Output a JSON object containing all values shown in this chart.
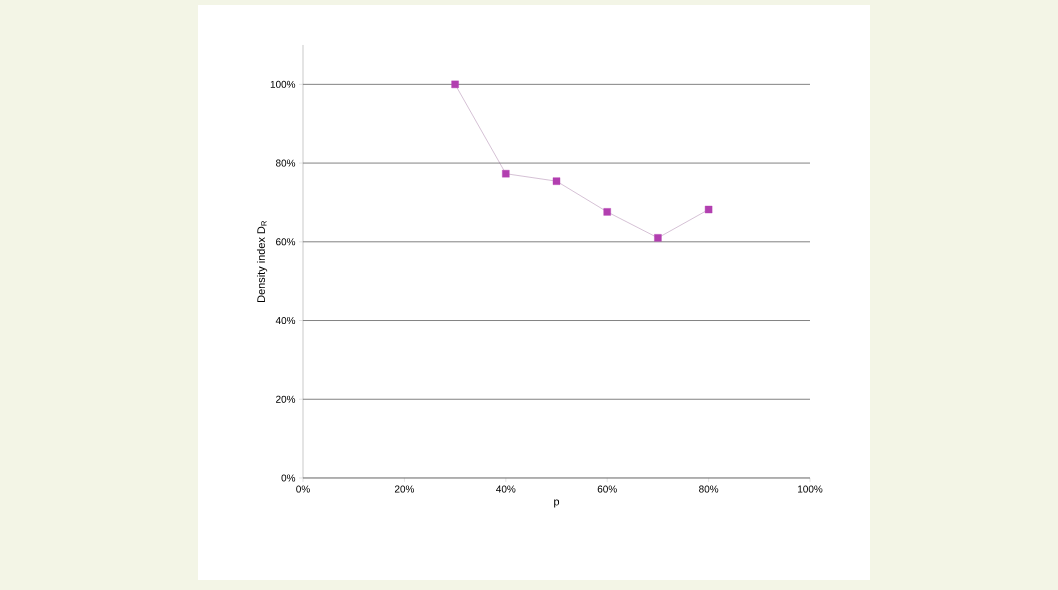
{
  "chart_data": {
    "type": "line",
    "xlabel": "p",
    "ylabel": "Density index D$_{R}$",
    "x": [
      30,
      40,
      50,
      60,
      70,
      80
    ],
    "series": [
      {
        "color": "#b23fb0",
        "values": [
          100,
          77.3,
          75.4,
          67.6,
          61,
          68.2
        ]
      }
    ],
    "xlim": [
      0,
      100
    ],
    "ylim": [
      0,
      110
    ],
    "xticks": [
      {
        "value": 0,
        "label": "0%"
      },
      {
        "value": 20,
        "label": "20%"
      },
      {
        "value": 40,
        "label": "40%"
      },
      {
        "value": 60,
        "label": "60%"
      },
      {
        "value": 80,
        "label": "80%"
      },
      {
        "value": 100,
        "label": "100%"
      }
    ],
    "yticks": [
      {
        "value": 0,
        "label": "0%"
      },
      {
        "value": 20,
        "label": "20%"
      },
      {
        "value": 40,
        "label": "40%"
      },
      {
        "value": 60,
        "label": "60%"
      },
      {
        "value": 80,
        "label": "80%"
      },
      {
        "value": 100,
        "label": "100%"
      }
    ],
    "grid": "y",
    "marker": "square",
    "line_style": "solid"
  }
}
